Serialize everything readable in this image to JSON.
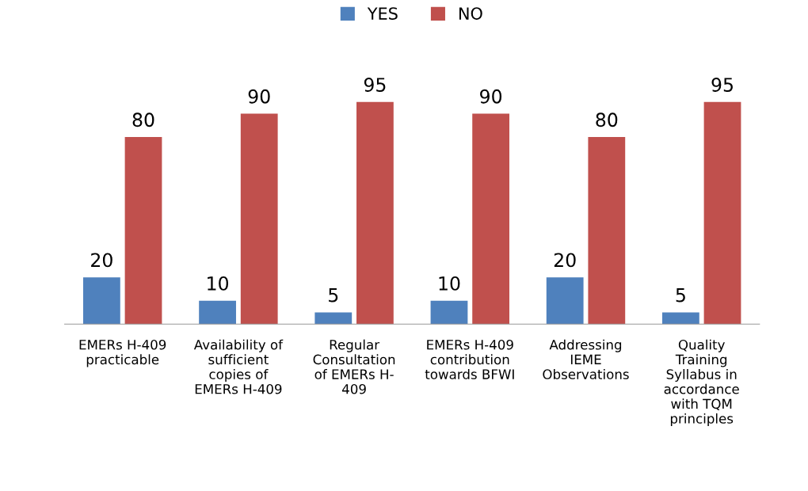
{
  "chart_data": {
    "type": "bar",
    "categories": [
      "EMERs H-409\npracticable",
      "Availability of\nsufficient\ncopies of\nEMERs H-409",
      "Regular\nConsultation\nof EMERs H-\n409",
      "EMERs H-409\ncontribution\ntowards BFWI",
      "Addressing\nIEME\nObservations",
      "Quality\nTraining\nSyllabus in\naccordance\nwith TQM\nprinciples"
    ],
    "series": [
      {
        "name": "YES",
        "color": "#4f81bd",
        "values": [
          20,
          10,
          5,
          10,
          20,
          5
        ]
      },
      {
        "name": "NO",
        "color": "#c0504d",
        "values": [
          80,
          90,
          95,
          90,
          80,
          95
        ]
      }
    ],
    "data_labels": true,
    "legend": "top",
    "grid": false,
    "tick_labels": "x"
  }
}
